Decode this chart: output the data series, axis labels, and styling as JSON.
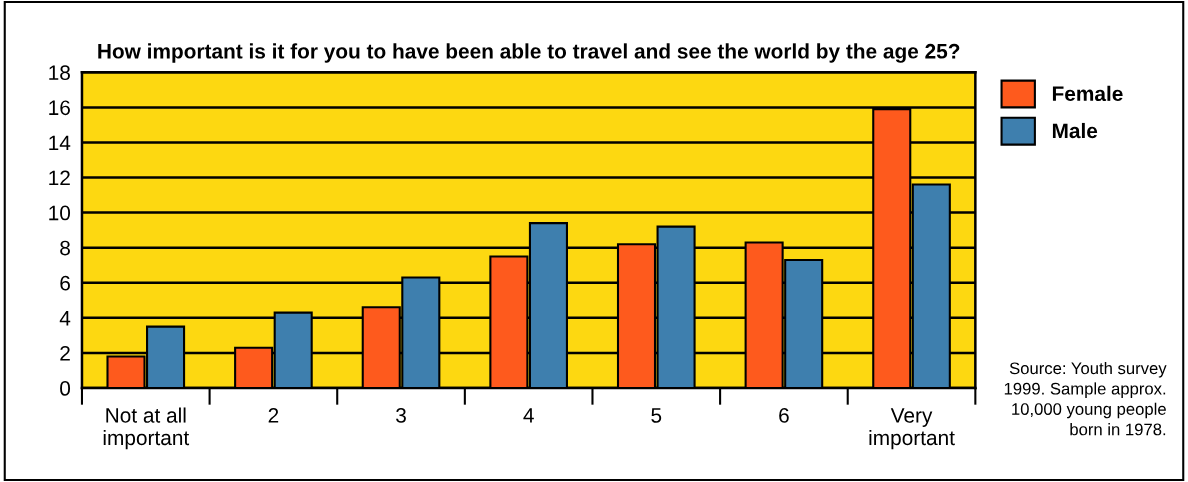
{
  "chart_data": {
    "type": "bar",
    "title": "How important is it for you to have been able to travel and see the world by the age 25?",
    "categories": [
      "Not at all\nimportant",
      "2",
      "3",
      "4",
      "5",
      "6",
      "Very\nimportant"
    ],
    "series": [
      {
        "name": "Female",
        "color": "#fe5a1d",
        "values": [
          1.8,
          2.3,
          4.6,
          7.5,
          8.2,
          8.3,
          15.9
        ]
      },
      {
        "name": "Male",
        "color": "#3e7fae",
        "values": [
          3.5,
          4.3,
          6.3,
          9.4,
          9.2,
          7.3,
          11.6
        ]
      }
    ],
    "ylim": [
      0,
      18
    ],
    "yticks": [
      0,
      2,
      4,
      6,
      8,
      10,
      12,
      14,
      16,
      18
    ],
    "grid": "y",
    "legend": "right",
    "annotations": [
      "Source: Youth survey\n1999. Sample approx.\n10,000 young people\nborn in 1978."
    ]
  }
}
